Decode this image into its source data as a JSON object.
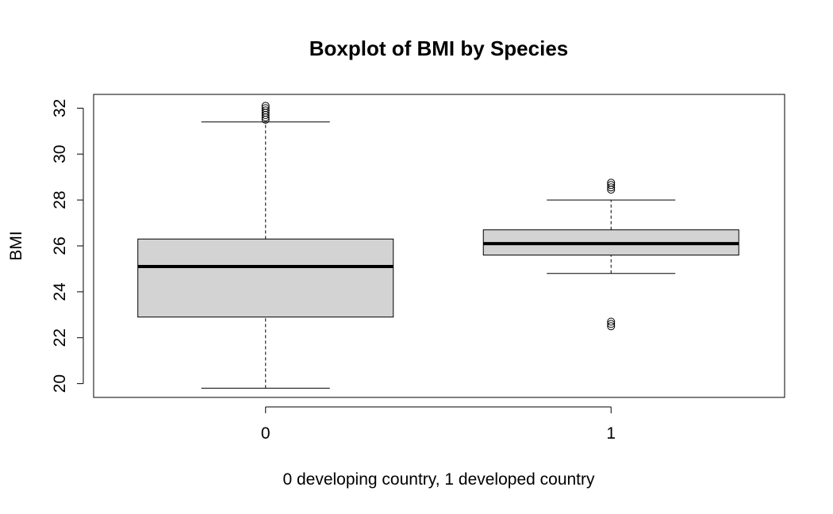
{
  "chart_data": {
    "type": "boxplot",
    "title": "Boxplot of BMI by Species",
    "xlabel": "0 developing country, 1 developed country",
    "ylabel": "BMI",
    "ylim": [
      19.4,
      32.6
    ],
    "yticks": [
      20,
      22,
      24,
      26,
      28,
      30,
      32
    ],
    "categories": [
      "0",
      "1"
    ],
    "box_fill": "#d3d3d3",
    "stroke_color": "#000000",
    "groups": [
      {
        "category": "0",
        "whisker_low": 19.8,
        "q1": 22.9,
        "median": 25.1,
        "q3": 26.3,
        "whisker_high": 31.4,
        "outliers": [
          31.5,
          31.6,
          31.7,
          31.8,
          31.9,
          32.0,
          32.1
        ]
      },
      {
        "category": "1",
        "whisker_low": 24.8,
        "q1": 25.6,
        "median": 26.1,
        "q3": 26.7,
        "whisker_high": 28.0,
        "outliers": [
          22.5,
          22.6,
          22.7,
          28.45,
          28.55,
          28.65,
          28.75
        ]
      }
    ]
  }
}
